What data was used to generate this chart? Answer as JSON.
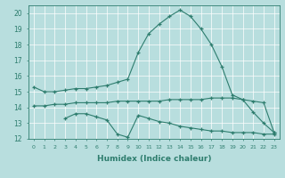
{
  "xlabel": "Humidex (Indice chaleur)",
  "x": [
    0,
    1,
    2,
    3,
    4,
    5,
    6,
    7,
    8,
    9,
    10,
    11,
    12,
    13,
    14,
    15,
    16,
    17,
    18,
    19,
    20,
    21,
    22,
    23
  ],
  "curve1": [
    15.3,
    15.0,
    15.0,
    15.1,
    15.2,
    15.2,
    15.3,
    15.4,
    15.6,
    15.8,
    17.5,
    18.7,
    19.3,
    19.8,
    20.2,
    19.8,
    19.0,
    18.0,
    16.6,
    14.8,
    14.5,
    13.7,
    13.0,
    12.4
  ],
  "curve2": [
    14.1,
    14.1,
    14.2,
    14.2,
    14.3,
    14.3,
    14.3,
    14.3,
    14.4,
    14.4,
    14.4,
    14.4,
    14.4,
    14.5,
    14.5,
    14.5,
    14.5,
    14.6,
    14.6,
    14.6,
    14.5,
    14.4,
    14.3,
    12.4
  ],
  "curve3": [
    null,
    null,
    null,
    13.3,
    13.6,
    13.6,
    13.4,
    13.2,
    12.3,
    12.1,
    13.5,
    13.3,
    13.1,
    13.0,
    12.8,
    12.7,
    12.6,
    12.5,
    12.5,
    12.4,
    12.4,
    12.4,
    12.3,
    12.3
  ],
  "line_color": "#2e7d6e",
  "bg_color": "#b8dede",
  "grid_color": "#ffffff",
  "ylim": [
    12,
    20.5
  ],
  "yticks": [
    12,
    13,
    14,
    15,
    16,
    17,
    18,
    19,
    20
  ],
  "xlim": [
    -0.5,
    23.5
  ]
}
